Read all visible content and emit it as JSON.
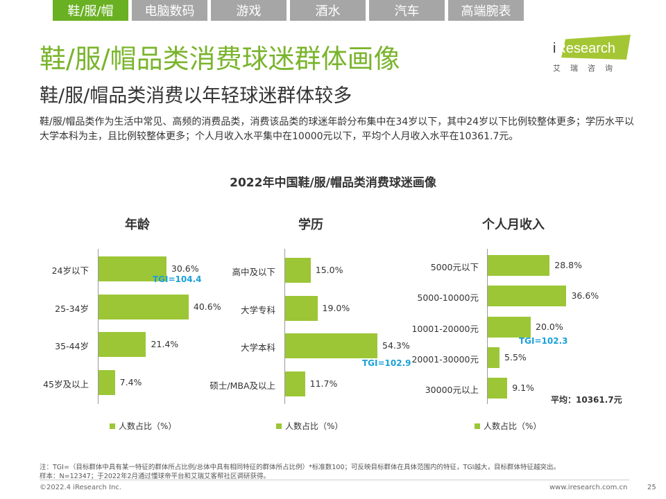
{
  "tabs": [
    {
      "label": "鞋/服/帽",
      "active": true
    },
    {
      "label": "电脑数码",
      "active": false
    },
    {
      "label": "游戏",
      "active": false
    },
    {
      "label": "酒水",
      "active": false
    },
    {
      "label": "汽车",
      "active": false
    },
    {
      "label": "高端腕表",
      "active": false
    }
  ],
  "logo": {
    "text_i": "i",
    "text_rest": "Research",
    "sub": "艾瑞咨询"
  },
  "title": "鞋/服/帽品类消费球迷群体画像",
  "subtitle": "鞋/服/帽品类消费以年轻球迷群体较多",
  "description": "鞋/服/帽品类作为生活中常见、高频的消费品类，消费该品类的球迷年龄分布集中在34岁以下，其中24岁以下比例较整体更多；学历水平以大学本科为主，且比例较整体更多；个人月收入水平集中在10000元以下，平均个人月收入水平在10361.7元。",
  "chart_data": [
    {
      "type": "bar",
      "orientation": "horizontal",
      "overall_title": "2022年中国鞋/服/帽品类消费球迷画像",
      "title": "年龄",
      "categories": [
        "24岁以下",
        "25-34岁",
        "35-44岁",
        "45岁及以上"
      ],
      "values": [
        30.6,
        40.6,
        21.4,
        7.4
      ],
      "value_labels": [
        "30.6%",
        "40.6%",
        "21.4%",
        "7.4%"
      ],
      "unit": "%",
      "legend": "人数占比（%）",
      "annotation": {
        "category_index": 0,
        "text": "TGI=104.4"
      },
      "xlim": [
        0,
        60
      ]
    },
    {
      "type": "bar",
      "orientation": "horizontal",
      "title": "学历",
      "categories": [
        "高中及以下",
        "大学专科",
        "大学本科",
        "硕士/MBA及以上"
      ],
      "values": [
        15.0,
        19.0,
        54.3,
        11.7
      ],
      "value_labels": [
        "15.0%",
        "19.0%",
        "54.3%",
        "11.7%"
      ],
      "unit": "%",
      "legend": "人数占比（%）",
      "annotation": {
        "category_index": 2,
        "text": "TGI=102.9"
      },
      "xlim": [
        0,
        60
      ]
    },
    {
      "type": "bar",
      "orientation": "horizontal",
      "title": "个人月收入",
      "categories": [
        "5000元以下",
        "5000-10000元",
        "10001-20000元",
        "20001-30000元",
        "30000元以上"
      ],
      "values": [
        28.8,
        36.6,
        20.0,
        5.5,
        9.1
      ],
      "value_labels": [
        "28.8%",
        "36.6%",
        "20.0%",
        "5.5%",
        "9.1%"
      ],
      "unit": "%",
      "legend": "人数占比（%）",
      "annotation": {
        "category_index": 2,
        "text": "TGI=102.3"
      },
      "average_label": "平均：10361.7元",
      "xlim": [
        0,
        36.6
      ]
    }
  ],
  "notes": {
    "line1": "注：TGI=（目标群体中具有某一特征的群体所占比例/总体中具有相同特征的群体所占比例）*标准数100；可反映目标群体在具体范围内的特征，TGI越大，目标群体特征越突出。",
    "line2": "样本：N=12347；于2022年2月通过懂球帝平台和艾瑞艾客帮社区调研获得。"
  },
  "footer": {
    "copyright": "©2022.4 iResearch Inc.",
    "url": "www.iresearch.com.cn",
    "page": "25"
  },
  "colors": {
    "accent": "#7ab42c",
    "bar": "#9cc636",
    "tgi": "#1aa0d8",
    "tab_active": "#6ab023",
    "tab_inactive": "#a6a6a6"
  }
}
